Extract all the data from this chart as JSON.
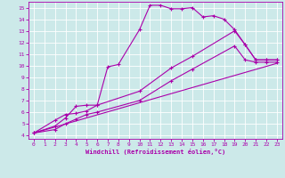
{
  "xlabel": "Windchill (Refroidissement éolien,°C)",
  "bg_color": "#cce9e9",
  "line_color": "#aa00aa",
  "grid_color": "#ffffff",
  "xlim": [
    -0.5,
    23.5
  ],
  "ylim": [
    3.7,
    15.5
  ],
  "yticks": [
    4,
    5,
    6,
    7,
    8,
    9,
    10,
    11,
    12,
    13,
    14,
    15
  ],
  "xticks": [
    0,
    1,
    2,
    3,
    4,
    5,
    6,
    7,
    8,
    9,
    10,
    11,
    12,
    13,
    14,
    15,
    16,
    17,
    18,
    19,
    20,
    21,
    22,
    23
  ],
  "line1_x": [
    0,
    2,
    3,
    4,
    5,
    6,
    7,
    8,
    10,
    11,
    12,
    13,
    14,
    15,
    16,
    17,
    18,
    19,
    20,
    21,
    22,
    23
  ],
  "line1_y": [
    4.2,
    4.8,
    5.5,
    6.5,
    6.6,
    6.6,
    9.9,
    10.1,
    13.1,
    15.2,
    15.2,
    14.9,
    14.9,
    15.0,
    14.2,
    14.3,
    14.0,
    13.1,
    11.8,
    10.5,
    10.5,
    10.5
  ],
  "line2_x": [
    0,
    2,
    3,
    4,
    5,
    6,
    10,
    13,
    15,
    19,
    20,
    21,
    22,
    23
  ],
  "line2_y": [
    4.2,
    5.3,
    5.8,
    5.9,
    6.1,
    6.6,
    7.8,
    9.8,
    10.8,
    13.0,
    11.8,
    10.5,
    10.5,
    10.5
  ],
  "line3_x": [
    0,
    2,
    3,
    4,
    5,
    6,
    10,
    13,
    15,
    19,
    20,
    21,
    22,
    23
  ],
  "line3_y": [
    4.2,
    4.5,
    5.0,
    5.4,
    5.8,
    6.0,
    7.0,
    8.7,
    9.7,
    11.7,
    10.5,
    10.3,
    10.3,
    10.3
  ],
  "line4_x": [
    0,
    23
  ],
  "line4_y": [
    4.2,
    10.2
  ]
}
